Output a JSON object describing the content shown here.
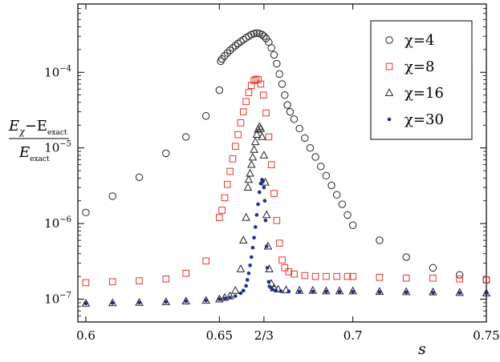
{
  "chart_data": {
    "type": "scatter",
    "xlabel": "s",
    "ylabel": {
      "numerator_main": "E",
      "numerator_sub1": "χ",
      "numerator_minus": "−E",
      "numerator_sub2": "exact",
      "denominator_main": "E",
      "denominator_sub": "exact"
    },
    "xlim": [
      0.597,
      0.75
    ],
    "ylim": [
      5e-08,
      0.0008
    ],
    "yscale": "log",
    "xticks": [
      {
        "value": 0.6,
        "label": "0.6"
      },
      {
        "value": 0.65,
        "label": "0.65"
      },
      {
        "value": 0.6667,
        "label": "2/3"
      },
      {
        "value": 0.7,
        "label": "0.7"
      },
      {
        "value": 0.75,
        "label": "0.75"
      }
    ],
    "yticks": [
      {
        "value": 1e-07,
        "base": "10",
        "exp": "−7"
      },
      {
        "value": 1e-06,
        "base": "10",
        "exp": "−6"
      },
      {
        "value": 1e-05,
        "base": "10",
        "exp": "−5"
      },
      {
        "value": 0.0001,
        "base": "10",
        "exp": "−4"
      }
    ],
    "grid": false,
    "legend_position": "top-right",
    "series": [
      {
        "name": "χ=4",
        "legend_label": "χ=4",
        "marker": "circle-open",
        "color": "#222222",
        "points": [
          [
            0.6,
            1.4e-06
          ],
          [
            0.61,
            2.3e-06
          ],
          [
            0.62,
            4.1e-06
          ],
          [
            0.63,
            8.5e-06
          ],
          [
            0.6375,
            1.4e-05
          ],
          [
            0.645,
            2.65e-05
          ],
          [
            0.65,
            5.8e-05
          ],
          [
            0.6505,
            0.00014
          ],
          [
            0.651,
            0.00015
          ],
          [
            0.652,
            0.000165
          ],
          [
            0.653,
            0.00018
          ],
          [
            0.654,
            0.000195
          ],
          [
            0.655,
            0.00021
          ],
          [
            0.656,
            0.000225
          ],
          [
            0.657,
            0.00024
          ],
          [
            0.658,
            0.000255
          ],
          [
            0.659,
            0.00027
          ],
          [
            0.66,
            0.000285
          ],
          [
            0.661,
            0.0003
          ],
          [
            0.662,
            0.000315
          ],
          [
            0.663,
            0.000325
          ],
          [
            0.664,
            0.00033
          ],
          [
            0.665,
            0.000325
          ],
          [
            0.666,
            0.000315
          ],
          [
            0.6667,
            0.0003
          ],
          [
            0.6675,
            0.00028
          ],
          [
            0.6685,
            0.00025
          ],
          [
            0.6695,
            0.00021
          ],
          [
            0.6705,
            0.00017
          ],
          [
            0.6715,
            0.00013
          ],
          [
            0.6725,
            9.5e-05
          ],
          [
            0.6735,
            7e-05
          ],
          [
            0.6745,
            5e-05
          ],
          [
            0.6755,
            3.7e-05
          ],
          [
            0.6765,
            3e-05
          ],
          [
            0.678,
            2.4e-05
          ],
          [
            0.68,
            1.8e-05
          ],
          [
            0.682,
            1.35e-05
          ],
          [
            0.684,
            1e-05
          ],
          [
            0.686,
            7.6e-06
          ],
          [
            0.688,
            5.7e-06
          ],
          [
            0.69,
            4.3e-06
          ],
          [
            0.692,
            3.2e-06
          ],
          [
            0.694,
            2.4e-06
          ],
          [
            0.696,
            1.8e-06
          ],
          [
            0.698,
            1.3e-06
          ],
          [
            0.7,
            9.5e-07
          ],
          [
            0.71,
            6e-07
          ],
          [
            0.72,
            3.6e-07
          ],
          [
            0.73,
            2.6e-07
          ],
          [
            0.74,
            2.1e-07
          ],
          [
            0.75,
            1.8e-07
          ]
        ]
      },
      {
        "name": "χ=8",
        "legend_label": "χ=8",
        "marker": "square-open",
        "color": "#e8322b",
        "points": [
          [
            0.6,
            1.65e-07
          ],
          [
            0.61,
            1.7e-07
          ],
          [
            0.62,
            1.75e-07
          ],
          [
            0.63,
            1.85e-07
          ],
          [
            0.6375,
            2.2e-07
          ],
          [
            0.645,
            3.2e-07
          ],
          [
            0.65,
            1.2e-06
          ],
          [
            0.651,
            1.5e-06
          ],
          [
            0.652,
            2.2e-06
          ],
          [
            0.653,
            3.3e-06
          ],
          [
            0.654,
            4.9e-06
          ],
          [
            0.655,
            7.2e-06
          ],
          [
            0.656,
            1.05e-05
          ],
          [
            0.657,
            1.5e-05
          ],
          [
            0.658,
            2.15e-05
          ],
          [
            0.659,
            3e-05
          ],
          [
            0.66,
            4.1e-05
          ],
          [
            0.661,
            5.4e-05
          ],
          [
            0.662,
            6.7e-05
          ],
          [
            0.663,
            7.8e-05
          ],
          [
            0.6637,
            8.1e-05
          ],
          [
            0.6645,
            8e-05
          ],
          [
            0.6655,
            7e-05
          ],
          [
            0.6665,
            5e-05
          ],
          [
            0.6675,
            2.9e-05
          ],
          [
            0.6685,
            1.4e-05
          ],
          [
            0.6695,
            6e-06
          ],
          [
            0.6705,
            2.5e-06
          ],
          [
            0.6715,
            1.1e-06
          ],
          [
            0.6725,
            5.5e-07
          ],
          [
            0.6735,
            3.3e-07
          ],
          [
            0.6745,
            2.6e-07
          ],
          [
            0.676,
            2.3e-07
          ],
          [
            0.678,
            2.15e-07
          ],
          [
            0.682,
            2.05e-07
          ],
          [
            0.686,
            2e-07
          ],
          [
            0.69,
            2e-07
          ],
          [
            0.694,
            2e-07
          ],
          [
            0.698,
            2e-07
          ],
          [
            0.7,
            2e-07
          ],
          [
            0.71,
            1.95e-07
          ],
          [
            0.72,
            1.9e-07
          ],
          [
            0.73,
            1.9e-07
          ],
          [
            0.74,
            1.85e-07
          ],
          [
            0.75,
            1.8e-07
          ]
        ]
      },
      {
        "name": "χ=16",
        "legend_label": "χ=16",
        "marker": "triangle-open",
        "color": "#222222",
        "points": [
          [
            0.6,
            8.8e-08
          ],
          [
            0.61,
            8.9e-08
          ],
          [
            0.62,
            9e-08
          ],
          [
            0.63,
            9.2e-08
          ],
          [
            0.6375,
            9.4e-08
          ],
          [
            0.645,
            9.6e-08
          ],
          [
            0.65,
            1e-07
          ],
          [
            0.652,
            1.05e-07
          ],
          [
            0.654,
            1.1e-07
          ],
          [
            0.656,
            1.3e-07
          ],
          [
            0.658,
            2.5e-07
          ],
          [
            0.659,
            6e-07
          ],
          [
            0.66,
            1.2e-06
          ],
          [
            0.6607,
            3e-06
          ],
          [
            0.661,
            3.8e-06
          ],
          [
            0.6615,
            4.6e-06
          ],
          [
            0.662,
            6e-06
          ],
          [
            0.6625,
            7.5e-06
          ],
          [
            0.663,
            9.5e-06
          ],
          [
            0.6635,
            1.2e-05
          ],
          [
            0.664,
            1.5e-05
          ],
          [
            0.6645,
            1.75e-05
          ],
          [
            0.665,
            1.9e-05
          ],
          [
            0.6655,
            1.8e-05
          ],
          [
            0.666,
            1.4e-05
          ],
          [
            0.6667,
            8e-06
          ],
          [
            0.6672,
            3.5e-06
          ],
          [
            0.6677,
            1.3e-06
          ],
          [
            0.6682,
            5e-07
          ],
          [
            0.6687,
            2.5e-07
          ],
          [
            0.6695,
            1.6e-07
          ],
          [
            0.6705,
            1.4e-07
          ],
          [
            0.672,
            1.35e-07
          ],
          [
            0.675,
            1.32e-07
          ],
          [
            0.68,
            1.3e-07
          ],
          [
            0.685,
            1.3e-07
          ],
          [
            0.69,
            1.28e-07
          ],
          [
            0.695,
            1.28e-07
          ],
          [
            0.7,
            1.28e-07
          ],
          [
            0.71,
            1.26e-07
          ],
          [
            0.72,
            1.25e-07
          ],
          [
            0.73,
            1.24e-07
          ],
          [
            0.74,
            1.22e-07
          ],
          [
            0.75,
            1.2e-07
          ]
        ]
      },
      {
        "name": "χ=30",
        "legend_label": "χ=30",
        "marker": "dot-filled",
        "color": "#1f2e8f",
        "points": [
          [
            0.6,
            8.8e-08
          ],
          [
            0.61,
            8.9e-08
          ],
          [
            0.62,
            9e-08
          ],
          [
            0.63,
            9.2e-08
          ],
          [
            0.6375,
            9.4e-08
          ],
          [
            0.645,
            9.6e-08
          ],
          [
            0.65,
            1e-07
          ],
          [
            0.652,
            1.02e-07
          ],
          [
            0.654,
            1.05e-07
          ],
          [
            0.656,
            1.1e-07
          ],
          [
            0.658,
            1.2e-07
          ],
          [
            0.659,
            1.3e-07
          ],
          [
            0.66,
            1.5e-07
          ],
          [
            0.6605,
            1.8e-07
          ],
          [
            0.661,
            2.2e-07
          ],
          [
            0.6615,
            2.8e-07
          ],
          [
            0.662,
            3.6e-07
          ],
          [
            0.6625,
            4.8e-07
          ],
          [
            0.663,
            6.5e-07
          ],
          [
            0.6635,
            9e-07
          ],
          [
            0.664,
            1.3e-06
          ],
          [
            0.6645,
            1.8e-06
          ],
          [
            0.665,
            2.6e-06
          ],
          [
            0.6655,
            3.4e-06
          ],
          [
            0.666,
            3.8e-06
          ],
          [
            0.6663,
            3.6e-06
          ],
          [
            0.6667,
            3e-06
          ],
          [
            0.667,
            2e-06
          ],
          [
            0.6673,
            1.1e-06
          ],
          [
            0.6677,
            5e-07
          ],
          [
            0.668,
            2.6e-07
          ],
          [
            0.6685,
            1.7e-07
          ],
          [
            0.669,
            1.45e-07
          ],
          [
            0.6698,
            1.35e-07
          ],
          [
            0.671,
            1.3e-07
          ],
          [
            0.673,
            1.28e-07
          ],
          [
            0.676,
            1.27e-07
          ],
          [
            0.68,
            1.26e-07
          ],
          [
            0.685,
            1.26e-07
          ],
          [
            0.69,
            1.26e-07
          ],
          [
            0.695,
            1.25e-07
          ],
          [
            0.7,
            1.25e-07
          ],
          [
            0.71,
            1.24e-07
          ],
          [
            0.72,
            1.23e-07
          ],
          [
            0.73,
            1.22e-07
          ],
          [
            0.74,
            1.21e-07
          ],
          [
            0.75,
            1.2e-07
          ]
        ]
      }
    ]
  }
}
